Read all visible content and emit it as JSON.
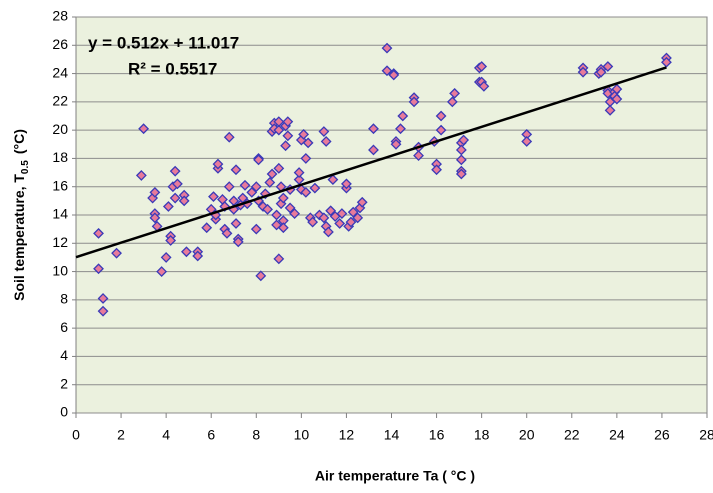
{
  "chart_data": {
    "type": "scatter",
    "xlabel": "Air temperature Ta ( °C )",
    "ylabel": {
      "text": "Soil temperature, T",
      "sub": "0.5",
      "unit": "(°C)"
    },
    "annotations": [
      "y = 0.512x + 11.017",
      "R² = 0.5517"
    ],
    "xlim": [
      0,
      28
    ],
    "xticks": [
      0,
      2,
      4,
      6,
      8,
      10,
      12,
      14,
      16,
      18,
      20,
      22,
      24,
      26,
      28
    ],
    "ylim": [
      0,
      28
    ],
    "yticks": [
      0,
      2,
      4,
      6,
      8,
      10,
      12,
      14,
      16,
      18,
      20,
      22,
      24,
      26,
      28
    ],
    "grid": true,
    "trendline": {
      "color": "#000000",
      "x": [
        0,
        26.2
      ],
      "y": [
        11.02,
        24.43
      ]
    },
    "series": [
      {
        "color": "#e87a9a",
        "edge_color": "#3a3ab8",
        "x": [
          1.0,
          1.0,
          1.2,
          1.2,
          1.8,
          2.9,
          3.0,
          3.4,
          3.5,
          3.5,
          3.5,
          3.6,
          3.8,
          4.0,
          4.1,
          4.2,
          4.2,
          4.3,
          4.4,
          4.4,
          4.5,
          4.8,
          4.8,
          4.9,
          5.4,
          5.4,
          5.8,
          6.0,
          6.1,
          6.2,
          6.2,
          6.3,
          6.3,
          6.5,
          6.6,
          6.6,
          6.7,
          6.8,
          6.8,
          7.0,
          7.0,
          7.1,
          7.1,
          7.2,
          7.2,
          7.3,
          7.4,
          7.5,
          7.6,
          7.8,
          8.0,
          8.0,
          8.1,
          8.1,
          8.1,
          8.2,
          8.3,
          8.4,
          8.5,
          8.6,
          8.7,
          8.7,
          8.8,
          8.8,
          8.9,
          8.9,
          9.0,
          9.0,
          9.0,
          9.0,
          9.1,
          9.1,
          9.2,
          9.2,
          9.2,
          9.3,
          9.3,
          9.4,
          9.4,
          9.5,
          9.5,
          9.7,
          9.9,
          9.9,
          10.0,
          10.0,
          10.1,
          10.2,
          10.2,
          10.3,
          10.4,
          10.5,
          10.6,
          10.8,
          11.0,
          11.0,
          11.1,
          11.1,
          11.2,
          11.3,
          11.4,
          11.5,
          11.7,
          11.8,
          12.0,
          12.0,
          12.1,
          12.2,
          12.3,
          12.5,
          12.6,
          12.7,
          13.2,
          13.2,
          13.8,
          13.8,
          14.1,
          14.1,
          14.2,
          14.2,
          14.4,
          14.5,
          15.0,
          15.0,
          15.2,
          15.2,
          15.9,
          16.0,
          16.0,
          16.2,
          16.2,
          16.7,
          16.8,
          17.1,
          17.1,
          17.1,
          17.1,
          17.1,
          17.2,
          17.9,
          17.9,
          18.0,
          18.0,
          18.1,
          20.0,
          20.0,
          22.5,
          22.5,
          23.2,
          23.3,
          23.3,
          23.6,
          23.6,
          23.6,
          23.7,
          23.7,
          23.9,
          23.9,
          24.0,
          24.0,
          26.2,
          26.2
        ],
        "values": [
          12.7,
          10.2,
          8.1,
          7.2,
          11.3,
          16.8,
          20.1,
          15.2,
          15.6,
          14.1,
          13.8,
          13.2,
          10.0,
          11.0,
          14.6,
          12.5,
          12.2,
          16.0,
          17.1,
          15.2,
          16.2,
          15.4,
          15.0,
          11.4,
          11.4,
          11.1,
          13.1,
          14.4,
          15.3,
          13.7,
          14.0,
          17.3,
          17.6,
          15.1,
          14.6,
          13.0,
          12.7,
          16.0,
          19.5,
          15.0,
          14.4,
          17.2,
          13.4,
          12.3,
          12.1,
          14.7,
          15.2,
          16.1,
          14.8,
          15.6,
          13.0,
          16.0,
          15.0,
          18.0,
          17.9,
          9.7,
          14.6,
          15.5,
          14.4,
          16.3,
          16.9,
          19.9,
          20.5,
          20.1,
          14.0,
          13.3,
          10.9,
          17.3,
          20.6,
          20.0,
          16.0,
          14.8,
          15.2,
          13.6,
          13.1,
          18.9,
          20.3,
          19.6,
          20.6,
          15.8,
          14.5,
          14.1,
          16.5,
          17.0,
          19.3,
          15.8,
          19.7,
          15.6,
          18.0,
          19.1,
          13.8,
          13.5,
          15.9,
          14.0,
          13.8,
          19.9,
          19.2,
          13.2,
          12.8,
          14.3,
          16.5,
          13.9,
          13.4,
          14.1,
          15.9,
          16.2,
          13.2,
          13.5,
          14.2,
          13.8,
          14.5,
          14.9,
          20.1,
          18.6,
          25.8,
          24.2,
          24.0,
          23.9,
          19.2,
          19.0,
          20.1,
          21.0,
          22.3,
          22.0,
          18.8,
          18.2,
          19.2,
          17.6,
          17.2,
          21.0,
          20.0,
          22.0,
          22.6,
          19.1,
          18.6,
          17.9,
          17.1,
          16.9,
          19.3,
          23.4,
          24.4,
          24.5,
          23.4,
          23.1,
          19.7,
          19.2,
          24.4,
          24.1,
          24.0,
          24.3,
          24.1,
          24.5,
          22.8,
          22.6,
          22.0,
          21.4,
          22.7,
          22.4,
          22.9,
          22.2,
          25.1,
          24.8
        ]
      }
    ]
  }
}
